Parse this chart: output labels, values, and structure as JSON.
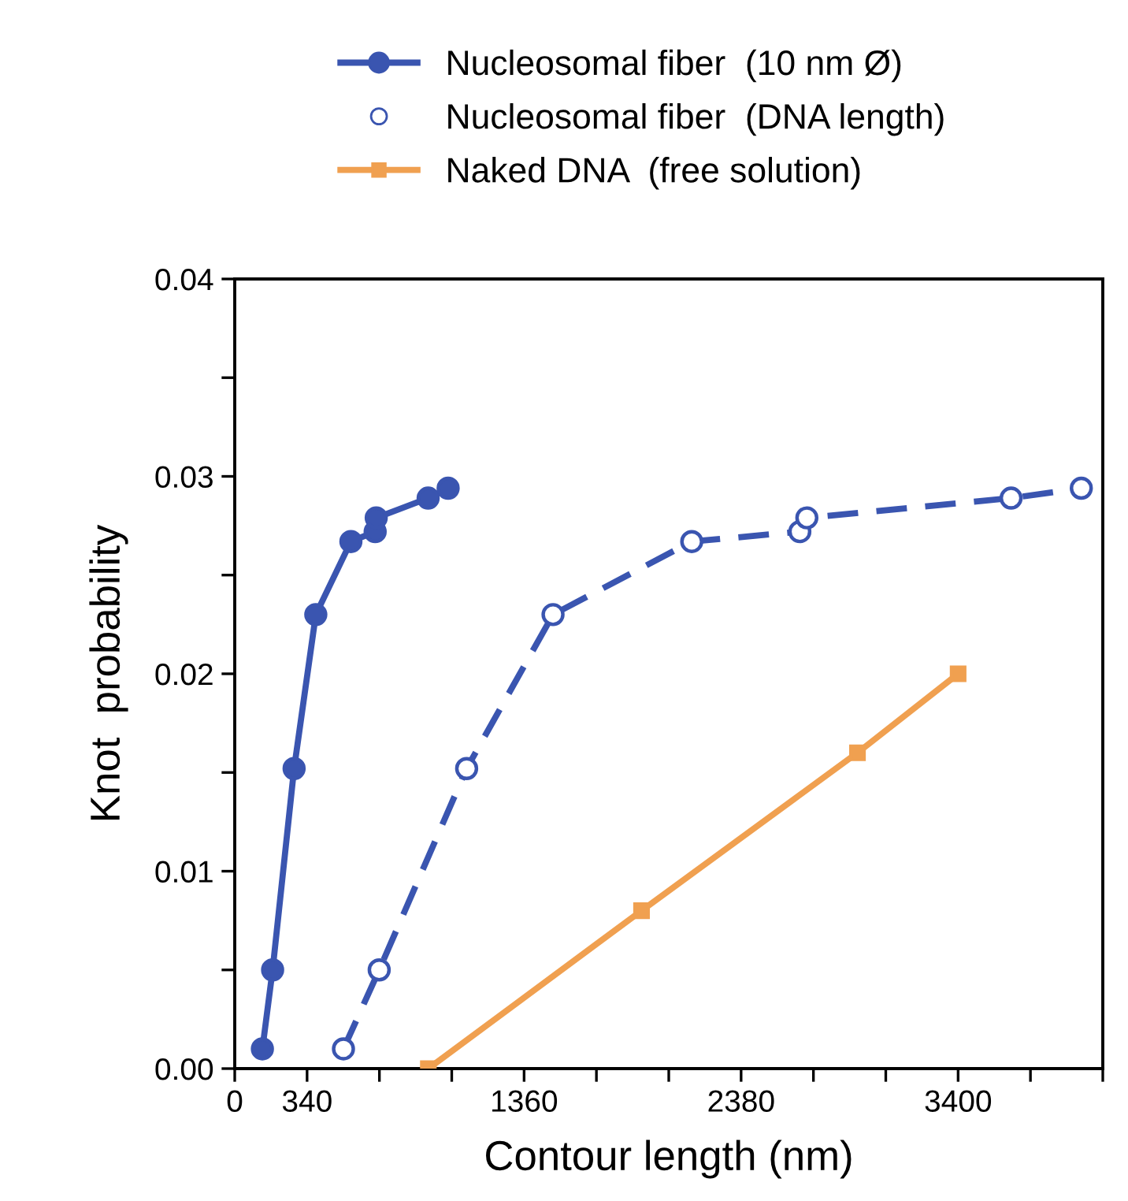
{
  "chart_data": {
    "type": "line",
    "xlabel": "Contour length (nm)",
    "ylabel": "Knot  probability",
    "xlim": [
      0,
      4080
    ],
    "ylim": [
      0,
      0.04
    ],
    "xticks": [
      0,
      340,
      {
        "value": 680,
        "label": null
      },
      {
        "value": 1020,
        "label": null
      },
      1360,
      {
        "value": 1700,
        "label": null
      },
      {
        "value": 2040,
        "label": null
      },
      2380,
      {
        "value": 2720,
        "label": null
      },
      {
        "value": 3060,
        "label": null
      },
      3400,
      {
        "value": 3740,
        "label": null
      },
      {
        "value": 4080,
        "label": null
      }
    ],
    "yticks": [
      {
        "value": 0,
        "label": "0.00"
      },
      {
        "value": 0.005,
        "label": null
      },
      {
        "value": 0.01,
        "label": "0.01"
      },
      {
        "value": 0.015,
        "label": null
      },
      {
        "value": 0.02,
        "label": "0.02"
      },
      {
        "value": 0.025,
        "label": null
      },
      {
        "value": 0.03,
        "label": "0.03"
      },
      {
        "value": 0.035,
        "label": null
      },
      {
        "value": 0.04,
        "label": "0.04"
      }
    ],
    "grid": false,
    "legend": "top",
    "series": [
      {
        "name": "Nucleosomal fiber  (10 nm Ø)",
        "color": "#3a55b0",
        "marker": "circle",
        "line_style": "solid",
        "x": [
          130,
          178,
          279,
          381,
          546,
          660,
          665,
          909,
          1003
        ],
        "values": [
          0.001,
          0.005,
          0.0152,
          0.023,
          0.0267,
          0.0272,
          0.0279,
          0.0289,
          0.0294
        ]
      },
      {
        "name": "Nucleosomal fiber  (DNA length)",
        "color": "#3a55b0",
        "marker": "circle",
        "line_style": "dashed",
        "x": [
          511,
          679,
          1090,
          1496,
          2148,
          2656,
          2689,
          3649,
          3979
        ],
        "values": [
          0.001,
          0.005,
          0.0152,
          0.023,
          0.0267,
          0.0272,
          0.0279,
          0.0289,
          0.0294
        ]
      },
      {
        "name": "Naked DNA  (free solution)",
        "color": "#f0a050",
        "marker": "square",
        "line_style": "solid",
        "x": [
          910,
          1912,
          2927,
          3400
        ],
        "values": [
          0,
          0.008,
          0.016,
          0.02
        ]
      }
    ]
  }
}
